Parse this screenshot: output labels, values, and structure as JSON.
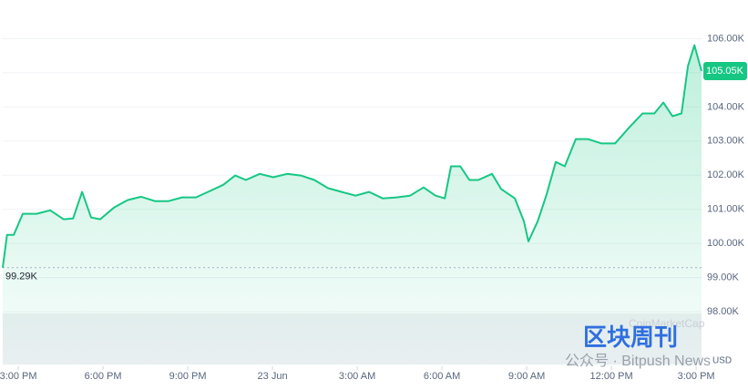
{
  "chart_data": {
    "type": "area",
    "x": [
      -0.55,
      -0.4,
      -0.16,
      0.16,
      0.65,
      1.13,
      1.6,
      1.94,
      2.26,
      2.58,
      2.9,
      3.39,
      3.87,
      4.35,
      4.84,
      5.32,
      5.8,
      6.29,
      6.77,
      7.26,
      7.68,
      8.06,
      8.55,
      9.03,
      9.52,
      10.0,
      10.48,
      10.97,
      11.45,
      11.94,
      12.42,
      12.9,
      13.39,
      13.87,
      14.35,
      14.77,
      15.1,
      15.32,
      15.65,
      15.97,
      16.29,
      16.77,
      17.1,
      17.58,
      17.9,
      18.06,
      18.39,
      18.71,
      19.03,
      19.35,
      19.74,
      20.16,
      20.65,
      21.13,
      21.61,
      22.1,
      22.52,
      22.84,
      23.16,
      23.48,
      23.71,
      23.94,
      24.19
    ],
    "values": [
      99290,
      100250,
      100250,
      100870,
      100870,
      100970,
      100710,
      100730,
      101510,
      100760,
      100710,
      101050,
      101270,
      101370,
      101240,
      101240,
      101350,
      101350,
      101530,
      101720,
      101990,
      101860,
      102040,
      101940,
      102040,
      101990,
      101860,
      101620,
      101510,
      101400,
      101510,
      101320,
      101350,
      101400,
      101640,
      101400,
      101320,
      102260,
      102260,
      101860,
      101860,
      102040,
      101590,
      101320,
      100650,
      100060,
      100650,
      101450,
      102390,
      102260,
      103060,
      103060,
      102930,
      102930,
      103380,
      103810,
      103810,
      104130,
      103730,
      103810,
      105200,
      105810,
      105050
    ],
    "color": "#16c784",
    "xlim": [
      -0.55,
      24.19
    ],
    "xticks": [
      {
        "value": 0,
        "label": "3:00 PM"
      },
      {
        "value": 3,
        "label": "6:00 PM"
      },
      {
        "value": 6,
        "label": "9:00 PM"
      },
      {
        "value": 9,
        "label": "23 Jun"
      },
      {
        "value": 12,
        "label": "3:00 AM"
      },
      {
        "value": 15,
        "label": "6:00 AM"
      },
      {
        "value": 18,
        "label": "9:00 AM"
      },
      {
        "value": 21,
        "label": "12:00 PM"
      },
      {
        "value": 24,
        "label": "3:00 PM"
      }
    ],
    "ylim": [
      96400,
      107000
    ],
    "yticks": [
      {
        "value": 98000,
        "label": "98.00K"
      },
      {
        "value": 99000,
        "label": "99.00K"
      },
      {
        "value": 100000,
        "label": "100.00K"
      },
      {
        "value": 101000,
        "label": "101.00K"
      },
      {
        "value": 102000,
        "label": "102.00K"
      },
      {
        "value": 103000,
        "label": "103.00K"
      },
      {
        "value": 104000,
        "label": "104.00K"
      },
      {
        "value": 105000,
        "label": "105.00K"
      },
      {
        "value": 106000,
        "label": "106.00K"
      }
    ],
    "grid": true,
    "open_price": {
      "value": 99290,
      "label": "99.29K"
    },
    "last_price": {
      "value": 105050,
      "label": "105.05K"
    },
    "unit": "USD",
    "watermarks": [
      "CoinMarketCap",
      "区块周刊",
      "公众号 · Bitpush News"
    ]
  }
}
